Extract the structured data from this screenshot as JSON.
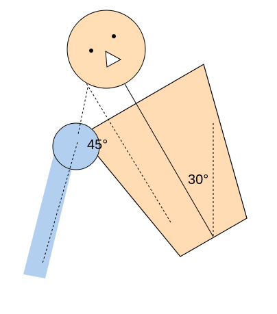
{
  "colors": {
    "background": "#ffffff",
    "body_fill": "#ffdcb3",
    "head_fill": "#ffddb5",
    "arm_fill": "#b3cff0",
    "stroke": "#000000"
  },
  "labels": {
    "shoulder_angle": "45°",
    "torso_angle": "30°"
  }
}
